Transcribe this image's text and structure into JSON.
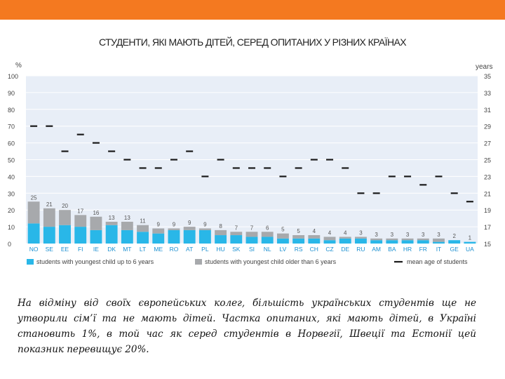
{
  "colors": {
    "top_bar": "#f47920",
    "plot_bg": "#e8eef7",
    "gridline": "#ffffff",
    "youngest_up_to_6": "#29b7e8",
    "youngest_older_6": "#a7a9ac",
    "mean_age": "#1a1a1a"
  },
  "chart_data": {
    "type": "bar",
    "stacked": true,
    "title": "СТУДЕНТИ, ЯКІ МАЮТЬ ДІТЕЙ, СЕРЕД ОПИТАНИХ У РІЗНИХ КРАЇНАХ",
    "ylabel_left": "%",
    "ylabel_right": "years",
    "ylim_left": [
      0,
      100
    ],
    "yticks_left": [
      0,
      10,
      20,
      30,
      40,
      50,
      60,
      70,
      80,
      90,
      100
    ],
    "ylim_right": [
      15,
      35
    ],
    "yticks_right": [
      15,
      17,
      19,
      21,
      23,
      25,
      27,
      29,
      31,
      33,
      35
    ],
    "categories": [
      "NO",
      "SE",
      "EE",
      "FI",
      "IE",
      "DK",
      "MT",
      "LT",
      "ME",
      "RO",
      "AT",
      "PL",
      "HU",
      "SK",
      "SI",
      "NL",
      "LV",
      "RS",
      "CH",
      "CZ",
      "DE",
      "RU",
      "AM",
      "BA",
      "HR",
      "FR",
      "IT",
      "GE",
      "UA"
    ],
    "series": [
      {
        "name": "students with youngest child up to 6 years",
        "values": [
          12,
          10,
          11,
          10,
          8,
          11,
          8,
          7,
          6,
          8,
          8,
          8,
          5,
          5,
          4,
          4,
          3,
          3,
          3,
          2,
          3,
          3,
          2,
          2,
          2,
          2,
          1,
          2,
          1
        ]
      },
      {
        "name": "students with youngest child older than 6 years",
        "values": [
          13,
          11,
          9,
          7,
          8,
          2,
          5,
          4,
          3,
          1,
          2,
          1,
          3,
          2,
          3,
          3,
          3,
          2,
          2,
          2,
          1,
          1,
          1,
          1,
          1,
          1,
          2,
          0,
          0
        ]
      },
      {
        "name": "mean age of students",
        "axis": "right",
        "values": [
          29,
          29,
          26,
          28,
          27,
          26,
          25,
          24,
          24,
          25,
          26,
          23,
          25,
          24,
          24,
          24,
          23,
          24,
          25,
          25,
          24,
          21,
          21,
          23,
          23,
          22,
          23,
          21,
          20
        ]
      }
    ],
    "data_labels": [
      "25",
      "21",
      "20",
      "17",
      "16",
      "13",
      "13",
      "11",
      "9",
      "9",
      "9",
      "9",
      "8",
      "7",
      "7",
      "6",
      "5",
      "5",
      "4",
      "4",
      "4",
      "3",
      "3",
      "3",
      "3",
      "3",
      "3",
      "2",
      "1"
    ],
    "legend": [
      "students with youngest child up to 6 years",
      "students with youngest child older than 6 years",
      "mean age of students"
    ]
  },
  "caption": "На відміну від своїх європейських колег, більшість українських студентів ще не утворили сім’ї та не мають дітей. Частка опитаних, які мають дітей, в Україні становить 1%, в той час як серед студентів в Норвегії, Швеції та Естонії цей показник перевищує 20%."
}
